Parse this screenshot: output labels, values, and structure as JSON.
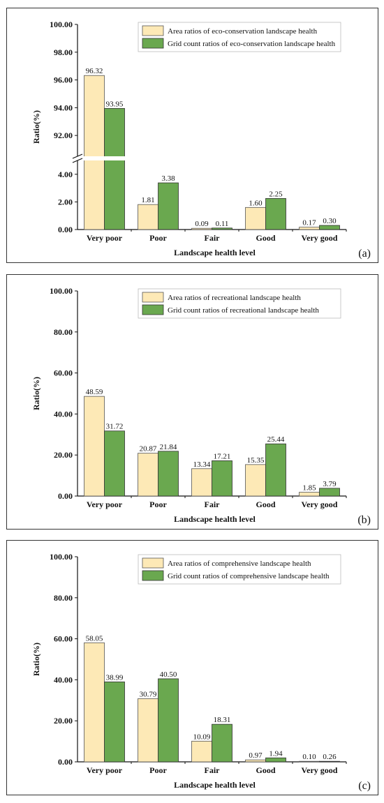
{
  "colors": {
    "area": "#fde9b6",
    "grid": "#6aa84f",
    "area_stroke": "#555555",
    "grid_stroke": "#333333"
  },
  "chart_data": [
    {
      "type": "bar",
      "panel_label": "(a)",
      "categories": [
        "Very poor",
        "Poor",
        "Fair",
        "Good",
        "Very good"
      ],
      "series": [
        {
          "name": "Area ratios of eco-conservation landscape health",
          "values": [
            96.32,
            1.81,
            0.09,
            1.6,
            0.17
          ]
        },
        {
          "name": "Grid count ratios of eco-conservation landscape health",
          "values": [
            93.95,
            3.38,
            0.11,
            2.25,
            0.3
          ]
        }
      ],
      "data_labels": [
        [
          "96.32",
          "1.81",
          "0.09",
          "1.60",
          "0.17"
        ],
        [
          "93.95",
          "3.38",
          "0.11",
          "2.25",
          "0.30"
        ]
      ],
      "xlabel": "Landscape health level",
      "ylabel": "Ratio(%)",
      "axis_break": {
        "lower": [
          0,
          5
        ],
        "upper": [
          90.5,
          100
        ]
      },
      "yticks": [
        "0.00",
        "2.00",
        "4.00",
        "92.00",
        "94.00",
        "96.00",
        "98.00",
        "100.00"
      ],
      "ytick_values": [
        0,
        2,
        4,
        92,
        94,
        96,
        98,
        100
      ],
      "legend": "top-right",
      "grid": false
    },
    {
      "type": "bar",
      "panel_label": "(b)",
      "categories": [
        "Very poor",
        "Poor",
        "Fair",
        "Good",
        "Very good"
      ],
      "series": [
        {
          "name": "Area ratios of recreational landscape health",
          "values": [
            48.59,
            20.87,
            13.34,
            15.35,
            1.85
          ]
        },
        {
          "name": "Grid count ratios of recreational landscape health",
          "values": [
            31.72,
            21.84,
            17.21,
            25.44,
            3.79
          ]
        }
      ],
      "data_labels": [
        [
          "48.59",
          "20.87",
          "13.34",
          "15.35",
          "1.85"
        ],
        [
          "31.72",
          "21.84",
          "17.21",
          "25.44",
          "3.79"
        ]
      ],
      "xlabel": "Landscape health level",
      "ylabel": "Ratio(%)",
      "ylim": [
        0,
        100
      ],
      "yticks": [
        "0.00",
        "20.00",
        "40.00",
        "60.00",
        "80.00",
        "100.00"
      ],
      "ytick_values": [
        0,
        20,
        40,
        60,
        80,
        100
      ],
      "legend": "top-right",
      "grid": false
    },
    {
      "type": "bar",
      "panel_label": "(c)",
      "categories": [
        "Very poor",
        "Poor",
        "Fair",
        "Good",
        "Very good"
      ],
      "series": [
        {
          "name": "Area ratios of comprehensive landscape health",
          "values": [
            58.05,
            30.79,
            10.09,
            0.97,
            0.1
          ]
        },
        {
          "name": "Grid count ratios of comprehensive landscape health",
          "values": [
            38.99,
            40.5,
            18.31,
            1.94,
            0.26
          ]
        }
      ],
      "data_labels": [
        [
          "58.05",
          "30.79",
          "10.09",
          "0.97",
          "0.10"
        ],
        [
          "38.99",
          "40.50",
          "18.31",
          "1.94",
          "0.26"
        ]
      ],
      "xlabel": "Landscape health level",
      "ylabel": "Ratio(%)",
      "ylim": [
        0,
        100
      ],
      "yticks": [
        "0.00",
        "20.00",
        "40.00",
        "60.00",
        "80.00",
        "100.00"
      ],
      "ytick_values": [
        0,
        20,
        40,
        60,
        80,
        100
      ],
      "legend": "top-right",
      "grid": false
    }
  ]
}
